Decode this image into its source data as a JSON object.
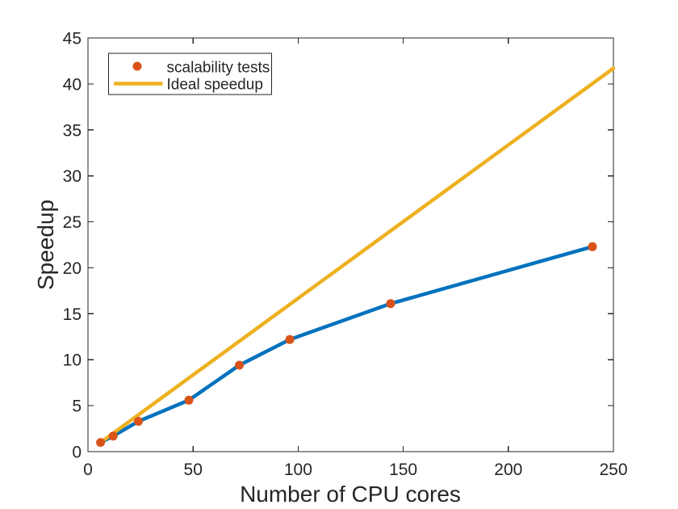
{
  "figure": {
    "background": "#ffffff",
    "axis_color": "#262626"
  },
  "chart_data": {
    "type": "line",
    "xlabel": "Number of CPU cores",
    "ylabel": "Speedup",
    "xlim": [
      0,
      250
    ],
    "ylim": [
      0,
      45
    ],
    "xticks": [
      0,
      50,
      100,
      150,
      200,
      250
    ],
    "yticks": [
      0,
      5,
      10,
      15,
      20,
      25,
      30,
      35,
      40,
      45
    ],
    "grid": false,
    "box": true,
    "series": [
      {
        "name": "scalability tests",
        "style": "line_with_markers",
        "line_color": "#0072BD",
        "marker_color": "#D95319",
        "x": [
          6,
          12,
          24,
          48,
          72,
          96,
          144,
          240
        ],
        "y": [
          1.0,
          1.7,
          3.3,
          5.6,
          9.4,
          12.2,
          16.1,
          22.3
        ]
      },
      {
        "name": "Ideal speedup",
        "style": "line",
        "line_color": "#EDB120",
        "x": [
          6,
          250
        ],
        "y": [
          1.0,
          41.7
        ]
      }
    ],
    "legend": {
      "position": "northwest",
      "entries": [
        {
          "label": "scalability tests",
          "glyph": "marker",
          "color": "#D95319"
        },
        {
          "label": "Ideal speedup",
          "glyph": "line",
          "color": "#EDB120"
        }
      ]
    }
  }
}
